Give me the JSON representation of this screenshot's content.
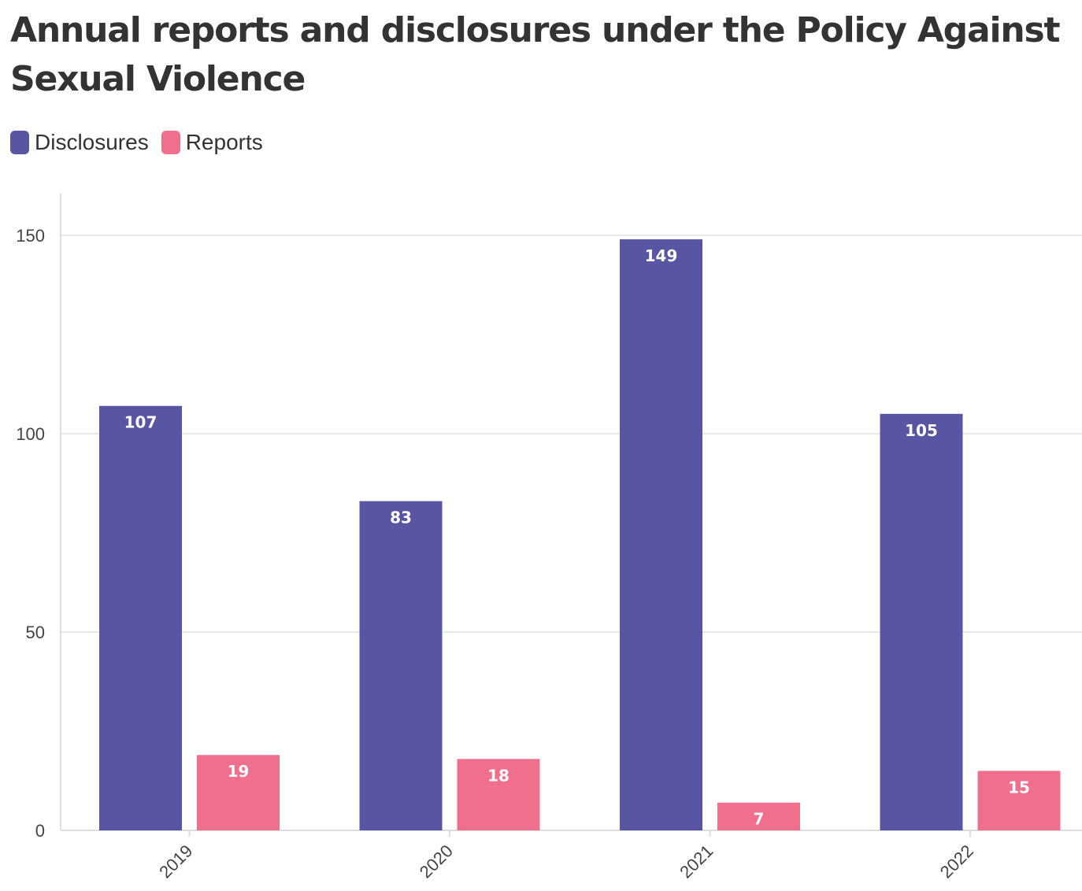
{
  "title": "Annual reports and disclosures under the Policy Against Sexual Violence",
  "colors": {
    "disclosures": "#5856a3",
    "reports": "#ef6f8d",
    "gridline": "#e8e8e8",
    "axis": "#dddddd",
    "text": "#333333"
  },
  "legend": {
    "items": [
      {
        "label": "Disclosures",
        "color": "#5856a3"
      },
      {
        "label": "Reports",
        "color": "#ef6f8d"
      }
    ]
  },
  "chart_data": {
    "type": "bar",
    "title": "Annual reports and disclosures under the Policy Against Sexual Violence",
    "xlabel": "",
    "ylabel": "",
    "categories": [
      "2019",
      "2020",
      "2021",
      "2022"
    ],
    "series": [
      {
        "name": "Disclosures",
        "values": [
          107,
          83,
          149,
          105
        ],
        "color": "#5856a3"
      },
      {
        "name": "Reports",
        "values": [
          19,
          18,
          7,
          15
        ],
        "color": "#ef6f8d"
      }
    ],
    "ylim": [
      0,
      160
    ],
    "yticks": [
      0,
      50,
      100,
      150
    ],
    "grid": true,
    "legend_position": "top-left",
    "data_labels": true
  }
}
